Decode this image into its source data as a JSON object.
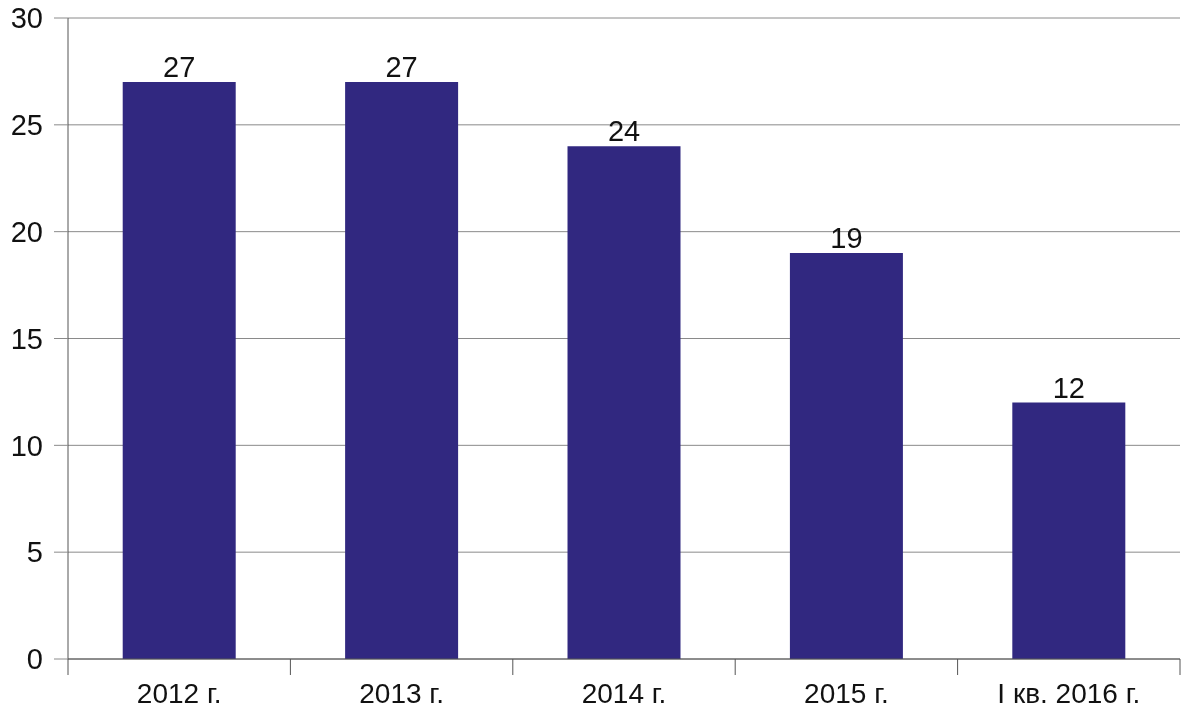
{
  "chart_data": {
    "type": "bar",
    "categories": [
      "2012 г.",
      "2013 г.",
      "2014 г.",
      "2015 г.",
      "I кв. 2016 г."
    ],
    "values": [
      27,
      27,
      24,
      19,
      12
    ],
    "color": "#312880",
    "ylim": [
      0,
      30
    ],
    "yticks": [
      0,
      5,
      10,
      15,
      20,
      25,
      30
    ],
    "grid": "y",
    "data_labels": true
  }
}
